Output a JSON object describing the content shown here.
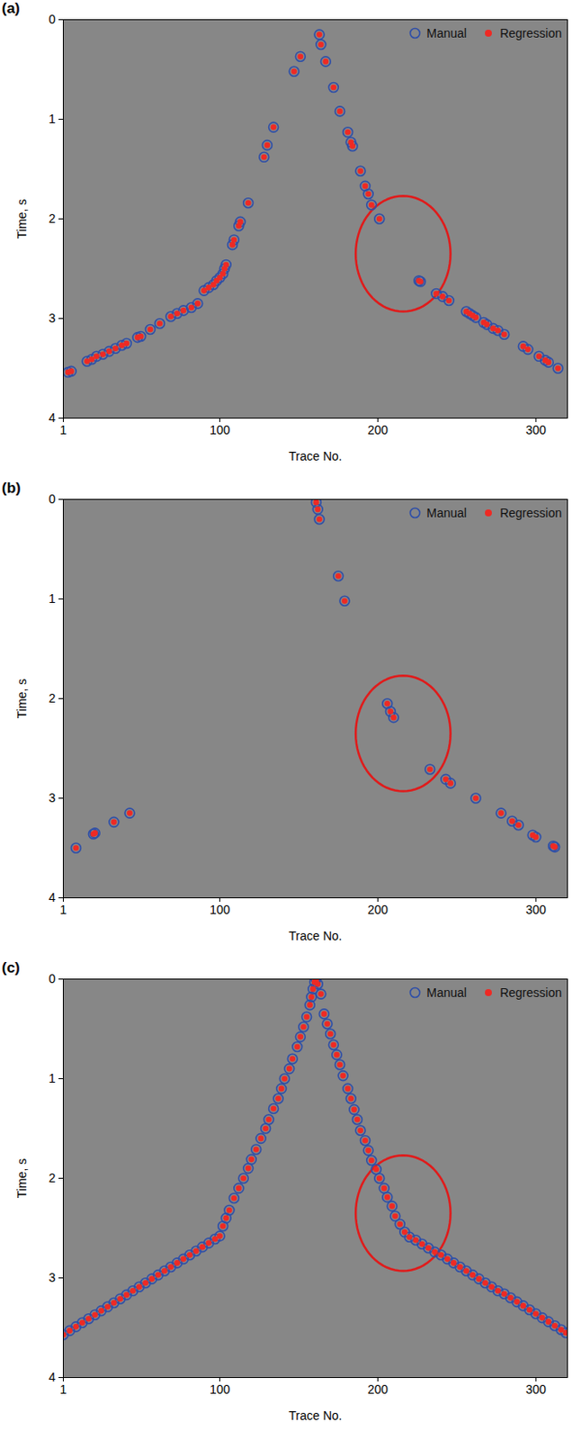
{
  "chart_data": [
    {
      "type": "scatter",
      "title": "(a)",
      "xlabel": "Trace No.",
      "ylabel": "Time, s",
      "xlim": [
        1,
        320
      ],
      "ylim": [
        0,
        4
      ],
      "xticks": [
        1,
        100,
        200,
        300
      ],
      "yticks": [
        0,
        1,
        2,
        3,
        4
      ],
      "legend": "top-right",
      "annotations": [
        {
          "shape": "ellipse",
          "x": [
            186,
            246
          ],
          "y": [
            1.77,
            2.93
          ],
          "color": "#e01b1b"
        }
      ],
      "x": [
        4,
        6,
        16,
        19,
        22,
        26,
        30,
        34,
        38,
        41,
        48,
        50,
        56,
        62,
        69,
        73,
        77,
        82,
        86,
        90,
        93,
        96,
        98,
        100,
        102,
        103,
        104,
        108,
        109,
        112,
        113,
        118,
        128,
        130,
        134,
        147,
        151,
        163,
        164,
        167,
        172,
        176,
        181,
        183,
        184,
        189,
        192,
        194,
        196,
        201,
        226,
        227,
        237,
        241,
        245,
        256,
        258,
        260,
        262,
        267,
        269,
        273,
        276,
        280,
        292,
        295,
        302,
        306,
        308,
        314
      ],
      "series": [
        {
          "name": "Manual",
          "color": "#2f4fa8",
          "marker": "open circle",
          "values": [
            3.54,
            3.53,
            3.43,
            3.41,
            3.38,
            3.36,
            3.33,
            3.3,
            3.27,
            3.25,
            3.19,
            3.18,
            3.11,
            3.05,
            2.98,
            2.95,
            2.92,
            2.89,
            2.85,
            2.72,
            2.69,
            2.66,
            2.62,
            2.59,
            2.55,
            2.5,
            2.46,
            2.26,
            2.21,
            2.07,
            2.03,
            1.84,
            1.38,
            1.26,
            1.08,
            0.52,
            0.37,
            0.15,
            0.25,
            0.42,
            0.68,
            0.92,
            1.13,
            1.23,
            1.27,
            1.52,
            1.67,
            1.75,
            1.86,
            2.0,
            2.62,
            2.63,
            2.75,
            2.78,
            2.82,
            2.93,
            2.95,
            2.97,
            2.99,
            3.04,
            3.06,
            3.1,
            3.12,
            3.16,
            3.28,
            3.31,
            3.38,
            3.42,
            3.44,
            3.5
          ]
        },
        {
          "name": "Regression",
          "color": "#ee2a24",
          "marker": "filled circle",
          "values": [
            3.54,
            3.53,
            3.43,
            3.41,
            3.38,
            3.36,
            3.33,
            3.3,
            3.27,
            3.25,
            3.19,
            3.18,
            3.11,
            3.05,
            2.98,
            2.95,
            2.92,
            2.89,
            2.85,
            2.72,
            2.69,
            2.66,
            2.62,
            2.59,
            2.55,
            2.5,
            2.46,
            2.26,
            2.21,
            2.07,
            2.03,
            1.84,
            1.38,
            1.26,
            1.08,
            0.52,
            0.37,
            0.15,
            0.25,
            0.42,
            0.68,
            0.92,
            1.13,
            1.23,
            1.27,
            1.52,
            1.67,
            1.75,
            1.86,
            2.0,
            2.62,
            2.63,
            2.75,
            2.78,
            2.82,
            2.93,
            2.95,
            2.97,
            2.99,
            3.04,
            3.06,
            3.1,
            3.12,
            3.16,
            3.28,
            3.31,
            3.38,
            3.42,
            3.44,
            3.5
          ]
        }
      ]
    },
    {
      "type": "scatter",
      "title": "(b)",
      "xlabel": "Trace No.",
      "ylabel": "Time, s",
      "xlim": [
        1,
        320
      ],
      "ylim": [
        0,
        4
      ],
      "xticks": [
        1,
        100,
        200,
        300
      ],
      "yticks": [
        0,
        1,
        2,
        3,
        4
      ],
      "legend": "top-right",
      "annotations": [
        {
          "shape": "ellipse",
          "x": [
            186,
            246
          ],
          "y": [
            1.77,
            2.93
          ],
          "color": "#e01b1b"
        }
      ],
      "x": [
        9,
        20,
        21,
        33,
        43,
        161,
        162,
        163,
        175,
        179,
        206,
        208,
        210,
        233,
        243,
        246,
        262,
        278,
        285,
        289,
        298,
        300,
        311,
        312
      ],
      "series": [
        {
          "name": "Manual",
          "color": "#2f4fa8",
          "marker": "open circle",
          "values": [
            3.5,
            3.36,
            3.35,
            3.24,
            3.15,
            0.03,
            0.1,
            0.2,
            0.77,
            1.02,
            2.05,
            2.13,
            2.19,
            2.71,
            2.81,
            2.85,
            3.0,
            3.15,
            3.23,
            3.27,
            3.37,
            3.39,
            3.48,
            3.49
          ]
        },
        {
          "name": "Regression",
          "color": "#ee2a24",
          "marker": "filled circle",
          "values": [
            3.5,
            3.36,
            3.35,
            3.24,
            3.15,
            0.03,
            0.1,
            0.2,
            0.77,
            1.02,
            2.05,
            2.13,
            2.19,
            2.71,
            2.81,
            2.85,
            3.0,
            3.15,
            3.23,
            3.27,
            3.37,
            3.39,
            3.48,
            3.49
          ]
        }
      ]
    },
    {
      "type": "scatter",
      "title": "(c)",
      "xlabel": "Trace No.",
      "ylabel": "Time, s",
      "xlim": [
        1,
        320
      ],
      "ylim": [
        0,
        4
      ],
      "xticks": [
        1,
        100,
        200,
        300
      ],
      "yticks": [
        0,
        1,
        2,
        3,
        4
      ],
      "legend": "top-right",
      "annotations": [
        {
          "shape": "ellipse",
          "x": [
            186,
            246
          ],
          "y": [
            1.77,
            2.93
          ],
          "color": "#e01b1b"
        }
      ],
      "x": [
        1,
        5,
        9,
        13,
        17,
        21,
        25,
        29,
        33,
        37,
        41,
        45,
        49,
        53,
        57,
        61,
        65,
        69,
        73,
        77,
        81,
        85,
        89,
        93,
        97,
        100,
        102,
        104,
        106,
        109,
        112,
        115,
        118,
        120,
        123,
        126,
        129,
        131,
        134,
        137,
        139,
        141,
        144,
        146,
        149,
        151,
        153,
        155,
        157,
        158,
        159,
        160,
        161,
        162,
        164,
        166,
        168,
        170,
        172,
        174,
        176,
        178,
        181,
        183,
        185,
        187,
        189,
        192,
        194,
        196,
        199,
        201,
        204,
        206,
        209,
        211,
        214,
        217,
        220,
        224,
        228,
        232,
        236,
        240,
        244,
        248,
        252,
        256,
        260,
        264,
        268,
        272,
        276,
        280,
        284,
        288,
        292,
        296,
        300,
        304,
        308,
        312,
        316,
        319
      ],
      "series": [
        {
          "name": "Manual",
          "color": "#2f4fa8",
          "marker": "open circle",
          "values": [
            3.57,
            3.53,
            3.49,
            3.45,
            3.41,
            3.37,
            3.33,
            3.29,
            3.25,
            3.21,
            3.17,
            3.13,
            3.09,
            3.05,
            3.01,
            2.97,
            2.93,
            2.89,
            2.85,
            2.81,
            2.77,
            2.73,
            2.69,
            2.65,
            2.61,
            2.58,
            2.48,
            2.4,
            2.32,
            2.2,
            2.1,
            2.0,
            1.9,
            1.81,
            1.71,
            1.6,
            1.5,
            1.41,
            1.3,
            1.2,
            1.1,
            1.0,
            0.9,
            0.8,
            0.68,
            0.58,
            0.48,
            0.38,
            0.26,
            0.18,
            0.1,
            0.03,
            0.0,
            0.05,
            0.15,
            0.35,
            0.45,
            0.55,
            0.66,
            0.76,
            0.86,
            0.97,
            1.1,
            1.2,
            1.31,
            1.41,
            1.52,
            1.62,
            1.72,
            1.82,
            1.91,
            2.0,
            2.1,
            2.19,
            2.28,
            2.38,
            2.46,
            2.54,
            2.59,
            2.62,
            2.66,
            2.7,
            2.74,
            2.77,
            2.81,
            2.85,
            2.89,
            2.93,
            2.97,
            3.01,
            3.05,
            3.09,
            3.13,
            3.16,
            3.2,
            3.24,
            3.28,
            3.32,
            3.36,
            3.4,
            3.44,
            3.48,
            3.52,
            3.55
          ]
        },
        {
          "name": "Regression",
          "color": "#ee2a24",
          "marker": "filled circle",
          "values": [
            3.57,
            3.53,
            3.49,
            3.45,
            3.41,
            3.37,
            3.33,
            3.29,
            3.25,
            3.21,
            3.17,
            3.13,
            3.09,
            3.05,
            3.01,
            2.97,
            2.93,
            2.89,
            2.85,
            2.81,
            2.77,
            2.73,
            2.69,
            2.65,
            2.61,
            2.58,
            2.48,
            2.4,
            2.32,
            2.2,
            2.1,
            2.0,
            1.9,
            1.81,
            1.71,
            1.6,
            1.5,
            1.41,
            1.3,
            1.2,
            1.1,
            1.0,
            0.9,
            0.8,
            0.68,
            0.58,
            0.48,
            0.38,
            0.26,
            0.18,
            0.1,
            0.03,
            0.0,
            0.05,
            0.15,
            0.35,
            0.45,
            0.55,
            0.66,
            0.76,
            0.86,
            0.97,
            1.1,
            1.2,
            1.31,
            1.41,
            1.52,
            1.62,
            1.72,
            1.82,
            1.91,
            2.0,
            2.1,
            2.19,
            2.28,
            2.38,
            2.46,
            2.54,
            2.59,
            2.62,
            2.66,
            2.7,
            2.74,
            2.77,
            2.81,
            2.85,
            2.89,
            2.93,
            2.97,
            3.01,
            3.05,
            3.09,
            3.13,
            3.16,
            3.2,
            3.24,
            3.28,
            3.32,
            3.36,
            3.4,
            3.44,
            3.48,
            3.52,
            3.55
          ]
        }
      ]
    }
  ]
}
